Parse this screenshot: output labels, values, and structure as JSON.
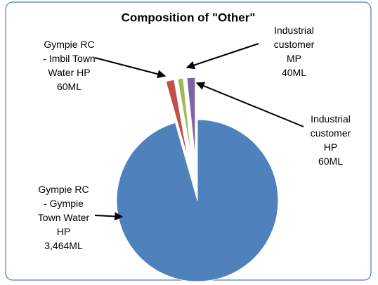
{
  "chart_data": {
    "type": "pie",
    "title": "Composition of \"Other\"",
    "categories": [
      "Gympie RC - Gympie Town Water HP",
      "Gympie RC - Imbil Town Water HP",
      "Industrial customer MP",
      "Industrial customer HP"
    ],
    "values": [
      3464,
      60,
      40,
      60
    ],
    "value_labels": [
      "3,464ML",
      "60ML",
      "40ML",
      "60ML"
    ],
    "colors": [
      "#4f81bd",
      "#c0504d",
      "#9bbb59",
      "#8064a2"
    ]
  }
}
